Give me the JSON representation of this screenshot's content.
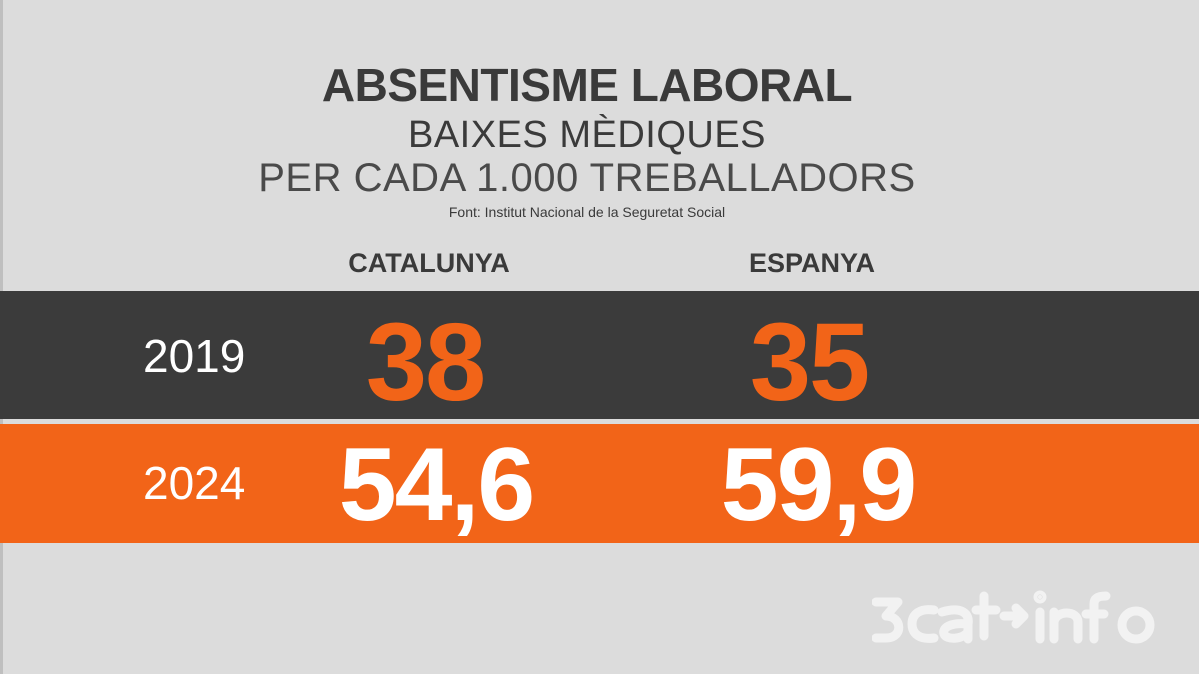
{
  "title": "ABSENTISME LABORAL",
  "subtitle": "BAIXES MÈDIQUES",
  "subtitle2": "PER CADA 1.000 TREBALLADORS",
  "source": "Font: Institut Nacional de la Seguretat Social",
  "logo_text": "3cat info",
  "colors": {
    "accent": "#f26418",
    "dark_row": "#3b3b3b",
    "background": "#dcdcdc",
    "text_dark": "#3a3a3a"
  },
  "chart_data": {
    "type": "table",
    "title": "ABSENTISME LABORAL",
    "subtitle": "BAIXES MÈDIQUES PER CADA 1.000 TREBALLADORS",
    "columns": [
      "CATALUNYA",
      "ESPANYA"
    ],
    "rows": [
      {
        "year": "2019",
        "values": [
          "38",
          "35"
        ]
      },
      {
        "year": "2024",
        "values": [
          "54,6",
          "59,9"
        ]
      }
    ],
    "values_numeric": [
      [
        38,
        35
      ],
      [
        54.6,
        59.9
      ]
    ]
  }
}
